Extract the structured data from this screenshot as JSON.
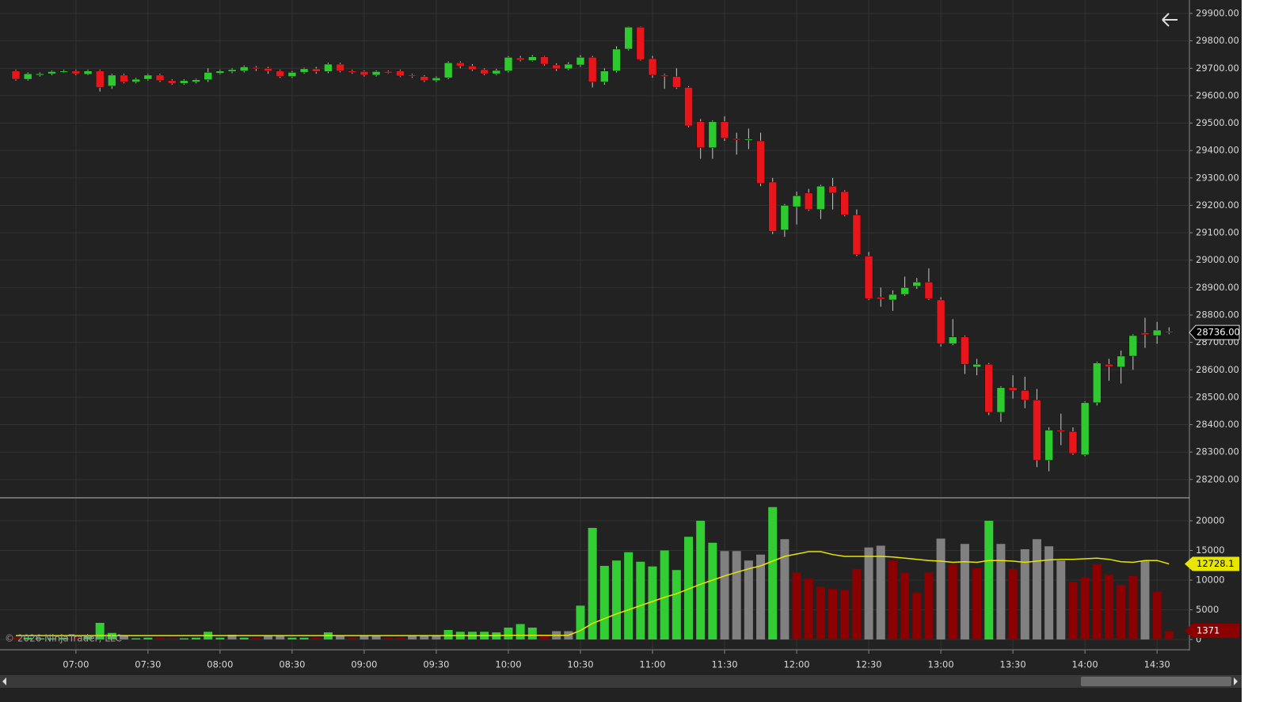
{
  "chart_data": [
    {
      "type": "candlestick",
      "open": [
        29690,
        29660,
        29675,
        29680,
        29688,
        29690,
        29678,
        29690,
        29635,
        29675,
        29650,
        29660,
        29675,
        29655,
        29645,
        29650,
        29658,
        29682,
        29688,
        29690,
        29703,
        29700,
        29690,
        29670,
        29685,
        29698,
        29688,
        29715,
        29690,
        29688,
        29675,
        29688,
        29690,
        29675,
        29670,
        29655,
        29665,
        29720,
        29708,
        29695,
        29680,
        29690,
        29738,
        29728,
        29742,
        29712,
        29698,
        29712,
        29740,
        29650,
        29690,
        29770,
        29850,
        29735,
        29675,
        29670,
        29630,
        29505,
        29410,
        29505,
        29443,
        29440,
        29435,
        29285,
        29110,
        29195,
        29245,
        29185,
        29270,
        29250,
        29165,
        29015,
        28865,
        28855,
        28875,
        28905,
        28920,
        28855,
        28695,
        28720,
        28610,
        28620,
        28445,
        28535,
        28525,
        28490,
        28270,
        28380,
        28375,
        28290,
        28480,
        28620,
        28610,
        28650,
        28735,
        28725,
        28740
      ],
      "high": [
        29695,
        29685,
        29685,
        29692,
        29695,
        29695,
        29695,
        29695,
        29680,
        29680,
        29665,
        29680,
        29680,
        29660,
        29660,
        29662,
        29700,
        29695,
        29700,
        29710,
        29708,
        29705,
        29695,
        29690,
        29702,
        29705,
        29720,
        29720,
        29695,
        29692,
        29692,
        29692,
        29695,
        29680,
        29675,
        29670,
        29725,
        29725,
        29715,
        29700,
        29698,
        29745,
        29745,
        29748,
        29745,
        29718,
        29722,
        29748,
        29745,
        29700,
        29780,
        29852,
        29852,
        29745,
        29680,
        29700,
        29635,
        29515,
        29510,
        29525,
        29465,
        29480,
        29465,
        29300,
        29205,
        29250,
        29260,
        29275,
        29300,
        29255,
        29185,
        29030,
        28900,
        28890,
        28940,
        28935,
        28970,
        28865,
        28785,
        28725,
        28640,
        28625,
        28540,
        28580,
        28575,
        28530,
        28390,
        28440,
        28390,
        28485,
        28630,
        28640,
        28670,
        28730,
        28790,
        28775,
        28755
      ],
      "low": [
        29655,
        29655,
        29670,
        29675,
        29683,
        29675,
        29675,
        29615,
        29625,
        29645,
        29645,
        29655,
        29650,
        29640,
        29640,
        29645,
        29650,
        29678,
        29682,
        29685,
        29690,
        29680,
        29665,
        29665,
        29680,
        29680,
        29682,
        29685,
        29680,
        29670,
        29670,
        29680,
        29668,
        29665,
        29650,
        29650,
        29660,
        29700,
        29690,
        29675,
        29675,
        29685,
        29725,
        29725,
        29710,
        29690,
        29693,
        29705,
        29630,
        29640,
        29685,
        29765,
        29728,
        29665,
        29625,
        29625,
        29485,
        29370,
        29370,
        29435,
        29385,
        29405,
        29270,
        29095,
        29085,
        29130,
        29180,
        29150,
        29185,
        29160,
        29015,
        28855,
        28830,
        28815,
        28870,
        28895,
        28855,
        28685,
        28690,
        28585,
        28580,
        28435,
        28410,
        28495,
        28460,
        28245,
        28230,
        28325,
        28290,
        28285,
        28470,
        28560,
        28550,
        28600,
        28680,
        28695,
        28730
      ],
      "close": [
        29660,
        29680,
        29680,
        29688,
        29690,
        29680,
        29690,
        29630,
        29675,
        29650,
        29660,
        29675,
        29655,
        29645,
        29655,
        29658,
        29685,
        29690,
        29695,
        29705,
        29698,
        29690,
        29670,
        29685,
        29698,
        29688,
        29715,
        29690,
        29685,
        29675,
        29688,
        29683,
        29672,
        29672,
        29655,
        29665,
        29720,
        29708,
        29695,
        29680,
        29692,
        29740,
        29730,
        29742,
        29715,
        29698,
        29715,
        29740,
        29650,
        29690,
        29770,
        29850,
        29732,
        29675,
        29670,
        29630,
        29490,
        29410,
        29505,
        29445,
        29440,
        29442,
        29280,
        29105,
        29200,
        29235,
        29185,
        29270,
        29245,
        29165,
        29020,
        28860,
        28858,
        28875,
        28900,
        28920,
        28860,
        28695,
        28720,
        28620,
        28620,
        28445,
        28535,
        28525,
        28490,
        28270,
        28380,
        28375,
        28295,
        28480,
        28625,
        28612,
        28650,
        28725,
        28728,
        28745,
        28736
      ],
      "last_price_label": "28736.00",
      "up_color": "#2ec92e",
      "down_color": "#e8161b",
      "ylim": [
        28136,
        29949
      ],
      "yticks": [
        {
          "value": 28200,
          "label": "28200.00"
        },
        {
          "value": 28300,
          "label": "28300.00"
        },
        {
          "value": 28400,
          "label": "28400.00"
        },
        {
          "value": 28500,
          "label": "28500.00"
        },
        {
          "value": 28600,
          "label": "28600.00"
        },
        {
          "value": 28700,
          "label": "28700.00"
        },
        {
          "value": 28800,
          "label": "28800.00"
        },
        {
          "value": 28900,
          "label": "28900.00"
        },
        {
          "value": 29000,
          "label": "29000.00"
        },
        {
          "value": 29100,
          "label": "29100.00"
        },
        {
          "value": 29200,
          "label": "29200.00"
        },
        {
          "value": 29300,
          "label": "29300.00"
        },
        {
          "value": 29400,
          "label": "29400.00"
        },
        {
          "value": 29500,
          "label": "29500.00"
        },
        {
          "value": 29600,
          "label": "29600.00"
        },
        {
          "value": 29700,
          "label": "29700.00"
        },
        {
          "value": 29800,
          "label": "29800.00"
        },
        {
          "value": 29900,
          "label": "29900.00"
        }
      ],
      "grid": true
    },
    {
      "type": "bar",
      "categories": [
        null,
        null,
        null,
        null,
        null,
        "07:00",
        null,
        null,
        null,
        null,
        null,
        "07:30",
        null,
        null,
        null,
        null,
        null,
        "08:00",
        null,
        null,
        null,
        null,
        null,
        "08:30",
        null,
        null,
        null,
        null,
        null,
        "09:00",
        null,
        null,
        null,
        null,
        null,
        "09:30",
        null,
        null,
        null,
        null,
        null,
        "10:00",
        null,
        null,
        null,
        null,
        null,
        "10:30",
        null,
        null,
        null,
        null,
        null,
        "11:00",
        null,
        null,
        null,
        null,
        null,
        "11:30",
        null,
        null,
        null,
        null,
        null,
        "12:00",
        null,
        null,
        null,
        null,
        null,
        "12:30",
        null,
        null,
        null,
        null,
        null,
        "13:00",
        null,
        null,
        null,
        null,
        null,
        "13:30",
        null,
        null,
        null,
        null,
        null,
        "14:00",
        null,
        null,
        null,
        null,
        null,
        "14:30",
        null
      ],
      "values": [
        400,
        300,
        200,
        200,
        300,
        300,
        500,
        2800,
        1100,
        600,
        200,
        300,
        300,
        200,
        200,
        300,
        1300,
        300,
        800,
        300,
        300,
        700,
        700,
        300,
        300,
        300,
        1200,
        700,
        300,
        700,
        700,
        300,
        300,
        700,
        700,
        700,
        1600,
        1300,
        1300,
        1300,
        1200,
        2000,
        2600,
        2000,
        700,
        1400,
        1400,
        5700,
        18800,
        12400,
        13300,
        14700,
        13100,
        12300,
        15000,
        11700,
        17300,
        20000,
        16300,
        14900,
        14900,
        13300,
        14300,
        22300,
        16900,
        11300,
        10300,
        8900,
        8500,
        8300,
        11900,
        15500,
        15800,
        13300,
        11200,
        7900,
        11300,
        17000,
        12700,
        16100,
        12000,
        20000,
        16100,
        11900,
        15200,
        16900,
        15700,
        13300,
        9700,
        10500,
        12700,
        10900,
        9200,
        10700,
        13300,
        8100,
        1371
      ],
      "colors": [
        "#8b0000",
        "#32cd32",
        "#32cd32",
        "#32cd32",
        "#32cd32",
        "#8b0000",
        "#32cd32",
        "#32cd32",
        "#32cd32",
        "#808080",
        "#32cd32",
        "#32cd32",
        "#8b0000",
        "#8b0000",
        "#32cd32",
        "#32cd32",
        "#32cd32",
        "#32cd32",
        "#808080",
        "#32cd32",
        "#8b0000",
        "#808080",
        "#808080",
        "#32cd32",
        "#32cd32",
        "#8b0000",
        "#32cd32",
        "#808080",
        "#8b0000",
        "#808080",
        "#808080",
        "#8b0000",
        "#8b0000",
        "#808080",
        "#808080",
        "#808080",
        "#32cd32",
        "#32cd32",
        "#32cd32",
        "#32cd32",
        "#32cd32",
        "#32cd32",
        "#32cd32",
        "#32cd32",
        "#8b0000",
        "#808080",
        "#808080",
        "#32cd32",
        "#32cd32",
        "#32cd32",
        "#32cd32",
        "#32cd32",
        "#32cd32",
        "#32cd32",
        "#32cd32",
        "#32cd32",
        "#32cd32",
        "#32cd32",
        "#32cd32",
        "#808080",
        "#808080",
        "#808080",
        "#808080",
        "#32cd32",
        "#808080",
        "#8b0000",
        "#8b0000",
        "#8b0000",
        "#8b0000",
        "#8b0000",
        "#8b0000",
        "#808080",
        "#808080",
        "#8b0000",
        "#8b0000",
        "#8b0000",
        "#8b0000",
        "#808080",
        "#8b0000",
        "#808080",
        "#8b0000",
        "#32cd32",
        "#808080",
        "#8b0000",
        "#808080",
        "#808080",
        "#808080",
        "#808080",
        "#8b0000",
        "#8b0000",
        "#8b0000",
        "#8b0000",
        "#8b0000",
        "#8b0000",
        "#808080",
        "#8b0000",
        "#8b0000"
      ],
      "ma": {
        "color": "#e6e600",
        "values": [
          650,
          650,
          650,
          650,
          650,
          650,
          650,
          650,
          650,
          650,
          650,
          650,
          650,
          650,
          650,
          650,
          650,
          650,
          650,
          650,
          650,
          650,
          650,
          650,
          650,
          650,
          650,
          650,
          650,
          650,
          650,
          650,
          650,
          650,
          650,
          650,
          650,
          650,
          650,
          650,
          650,
          700,
          700,
          700,
          700,
          700,
          700,
          1500,
          2700,
          3500,
          4300,
          5000,
          5700,
          6400,
          7100,
          7700,
          8500,
          9300,
          10000,
          10700,
          11300,
          11900,
          12400,
          13200,
          14000,
          14400,
          14800,
          14800,
          14300,
          14000,
          14000,
          14000,
          14000,
          13900,
          13700,
          13500,
          13300,
          13200,
          13000,
          13100,
          13000,
          13300,
          13300,
          13200,
          13000,
          13200,
          13400,
          13500,
          13500,
          13600,
          13700,
          13500,
          13100,
          13000,
          13300,
          13300,
          12728.1
        ]
      },
      "ylim": [
        -1600,
        23733
      ],
      "yticks": [
        0,
        5000,
        10000,
        15000,
        20000
      ],
      "grid": true
    }
  ],
  "watermark": "© 2026 NinjaTrader, LLC"
}
